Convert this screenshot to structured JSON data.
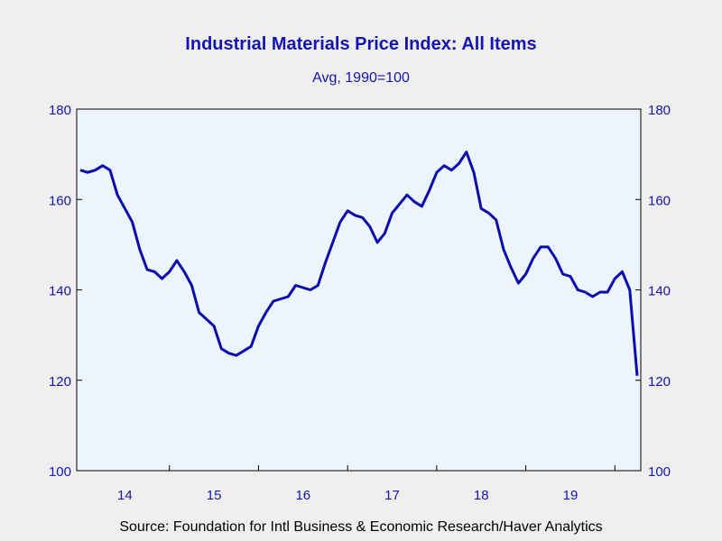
{
  "chart_data": {
    "type": "line",
    "title": "Industrial Materials Price Index: All Items",
    "subtitle": "Avg, 1990=100",
    "source": "Source:  Foundation for Intl Business & Economic Research/Haver Analytics",
    "ylim": [
      100,
      180
    ],
    "y_ticks": [
      "100",
      "120",
      "140",
      "160",
      "180"
    ],
    "x_range": [
      "2014-01",
      "2020-03"
    ],
    "year_labels": [
      "14",
      "15",
      "16",
      "17",
      "18",
      "19"
    ],
    "grid": false,
    "colors": {
      "line": "#0b0bb0",
      "text": "#1414b4",
      "plot_bg": "#eef4fc",
      "frame": "#000000"
    },
    "series": [
      {
        "x": [
          "2014-01",
          "2014-02",
          "2014-03",
          "2014-04",
          "2014-05",
          "2014-06",
          "2014-07",
          "2014-08",
          "2014-09",
          "2014-10",
          "2014-11",
          "2014-12",
          "2015-01",
          "2015-02",
          "2015-03",
          "2015-04",
          "2015-05",
          "2015-06",
          "2015-07",
          "2015-08",
          "2015-09",
          "2015-10",
          "2015-11",
          "2015-12",
          "2016-01",
          "2016-02",
          "2016-03",
          "2016-04",
          "2016-05",
          "2016-06",
          "2016-07",
          "2016-08",
          "2016-09",
          "2016-10",
          "2016-11",
          "2016-12",
          "2017-01",
          "2017-02",
          "2017-03",
          "2017-04",
          "2017-05",
          "2017-06",
          "2017-07",
          "2017-08",
          "2017-09",
          "2017-10",
          "2017-11",
          "2017-12",
          "2018-01",
          "2018-02",
          "2018-03",
          "2018-04",
          "2018-05",
          "2018-06",
          "2018-07",
          "2018-08",
          "2018-09",
          "2018-10",
          "2018-11",
          "2018-12",
          "2019-01",
          "2019-02",
          "2019-03",
          "2019-04",
          "2019-05",
          "2019-06",
          "2019-07",
          "2019-08",
          "2019-09",
          "2019-10",
          "2019-11",
          "2019-12",
          "2020-01",
          "2020-02",
          "2020-03",
          "2020-04"
        ],
        "values": [
          166.5,
          166.0,
          166.5,
          167.5,
          166.5,
          161.0,
          158.0,
          155.0,
          149.0,
          144.5,
          144.0,
          142.5,
          144.0,
          146.5,
          144.0,
          141.0,
          135.0,
          133.5,
          132.0,
          127.0,
          126.0,
          125.5,
          126.5,
          127.5,
          132.0,
          135.0,
          137.5,
          138.0,
          138.5,
          141.0,
          140.5,
          140.0,
          141.0,
          146.0,
          150.5,
          155.0,
          157.5,
          156.5,
          156.0,
          154.0,
          150.5,
          152.5,
          157.0,
          159.0,
          161.0,
          159.5,
          158.5,
          162.0,
          166.0,
          167.5,
          166.5,
          168.0,
          170.5,
          166.0,
          158.0,
          157.0,
          155.5,
          149.0,
          145.0,
          141.5,
          143.5,
          147.0,
          149.5,
          149.5,
          147.0,
          143.5,
          143.0,
          140.0,
          139.5,
          138.5,
          139.5,
          139.5,
          142.5,
          144.0,
          140.0,
          121.0
        ]
      }
    ]
  }
}
